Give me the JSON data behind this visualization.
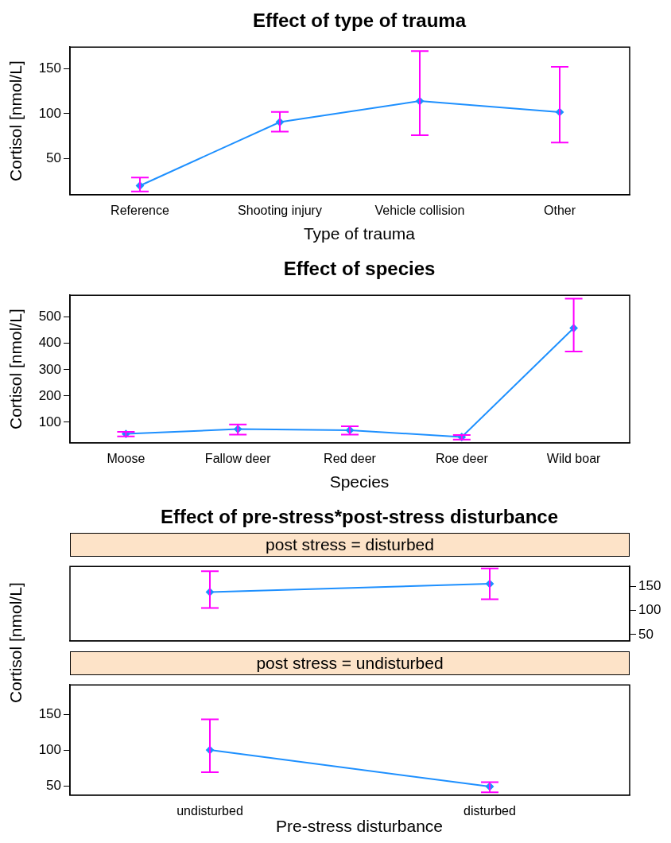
{
  "chart_data": [
    {
      "type": "line",
      "title": "Effect of type of trauma",
      "xlabel": "Type of trauma",
      "ylabel": "Cortisol [nmol/L]",
      "categories": [
        "Reference",
        "Shooting injury",
        "Vehicle collision",
        "Other"
      ],
      "values": [
        20,
        90.7,
        114,
        101.8
      ],
      "errors": [
        [
          13.5,
          29
        ],
        [
          80,
          102
        ],
        [
          76,
          169.5
        ],
        [
          68,
          152
        ]
      ],
      "color": "#1e90ff",
      "marker": "diamond",
      "ylim": [
        10,
        174
      ],
      "yticks": [
        50,
        100,
        150
      ],
      "grid": false
    },
    {
      "type": "line",
      "title": "Effect of species",
      "xlabel": "Species",
      "ylabel": "Cortisol [nmol/L]",
      "categories": [
        "Moose",
        "Fallow deer",
        "Red deer",
        "Roe deer",
        "Wild boar"
      ],
      "values": [
        56,
        74,
        70,
        44,
        458
      ],
      "errors": [
        [
          46,
          64
        ],
        [
          53,
          92
        ],
        [
          53,
          85
        ],
        [
          34,
          52
        ],
        [
          369,
          570
        ]
      ],
      "color": "#1e90ff",
      "marker": "diamond",
      "ylim": [
        22,
        583
      ],
      "yticks": [
        100,
        200,
        300,
        400,
        500
      ],
      "grid": false
    },
    {
      "type": "line",
      "title": "Effect of pre-stress*post-stress disturbance",
      "subtitle": "post  stress = disturbed",
      "categories": [
        null,
        null
      ],
      "values": [
        138,
        155
      ],
      "errors": [
        [
          105,
          181
        ],
        [
          123,
          187
        ]
      ],
      "color": "#1e90ff",
      "marker": "diamond",
      "ylim": [
        37,
        191
      ],
      "yticks": [
        50,
        100,
        150
      ],
      "grid": false,
      "tick_labels": "y"
    },
    {
      "type": "line",
      "subtitle": "post  stress = undisturbed",
      "xlabel": "Pre-stress disturbance",
      "ylabel": "Cortisol [nmol/L]",
      "categories": [
        "undisturbed",
        "disturbed"
      ],
      "values": [
        100,
        49
      ],
      "errors": [
        [
          69,
          143
        ],
        [
          41,
          55
        ]
      ],
      "color": "#1e90ff",
      "marker": "diamond",
      "ylim": [
        37,
        191
      ],
      "yticks": [
        50,
        100,
        150
      ],
      "grid": false
    }
  ]
}
